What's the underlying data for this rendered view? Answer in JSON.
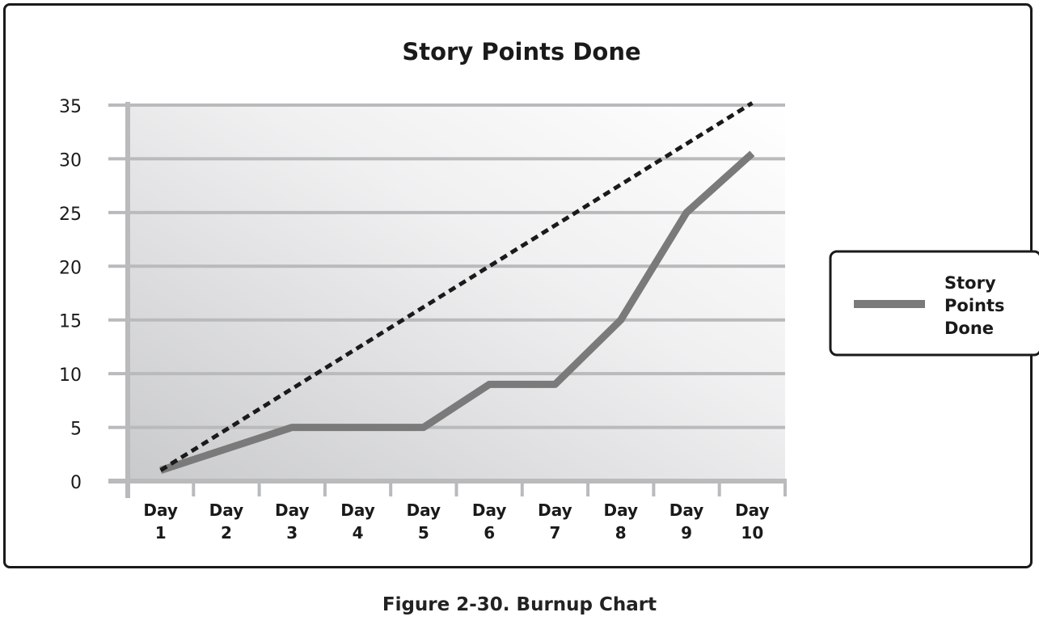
{
  "chart_data": {
    "type": "line",
    "title": "Story Points Done",
    "categories": [
      [
        "Day",
        "1"
      ],
      [
        "Day",
        "2"
      ],
      [
        "Day",
        "3"
      ],
      [
        "Day",
        "4"
      ],
      [
        "Day",
        "5"
      ],
      [
        "Day",
        "6"
      ],
      [
        "Day",
        "7"
      ],
      [
        "Day",
        "8"
      ],
      [
        "Day",
        "9"
      ],
      [
        "Day",
        "10"
      ]
    ],
    "ylim": [
      0,
      35
    ],
    "yticks": [
      "0",
      "5",
      "10",
      "15",
      "20",
      "25",
      "30",
      "35"
    ],
    "grid": true,
    "series": [
      {
        "name": "Story Points Done",
        "values": [
          1,
          3,
          5,
          5,
          5,
          9,
          9,
          15,
          25,
          30.5
        ],
        "color": "#7a7a7a",
        "style": "solid"
      },
      {
        "values": [
          1,
          4.8,
          8.6,
          12.4,
          16.2,
          20,
          23.8,
          27.6,
          31.4,
          35.2
        ],
        "color": "#1a1a1a",
        "style": "dashed"
      }
    ],
    "legend": {
      "position": "right",
      "label_lines": [
        "Story",
        "Points",
        "Done"
      ]
    }
  },
  "caption": "Figure 2-30. Burnup Chart"
}
